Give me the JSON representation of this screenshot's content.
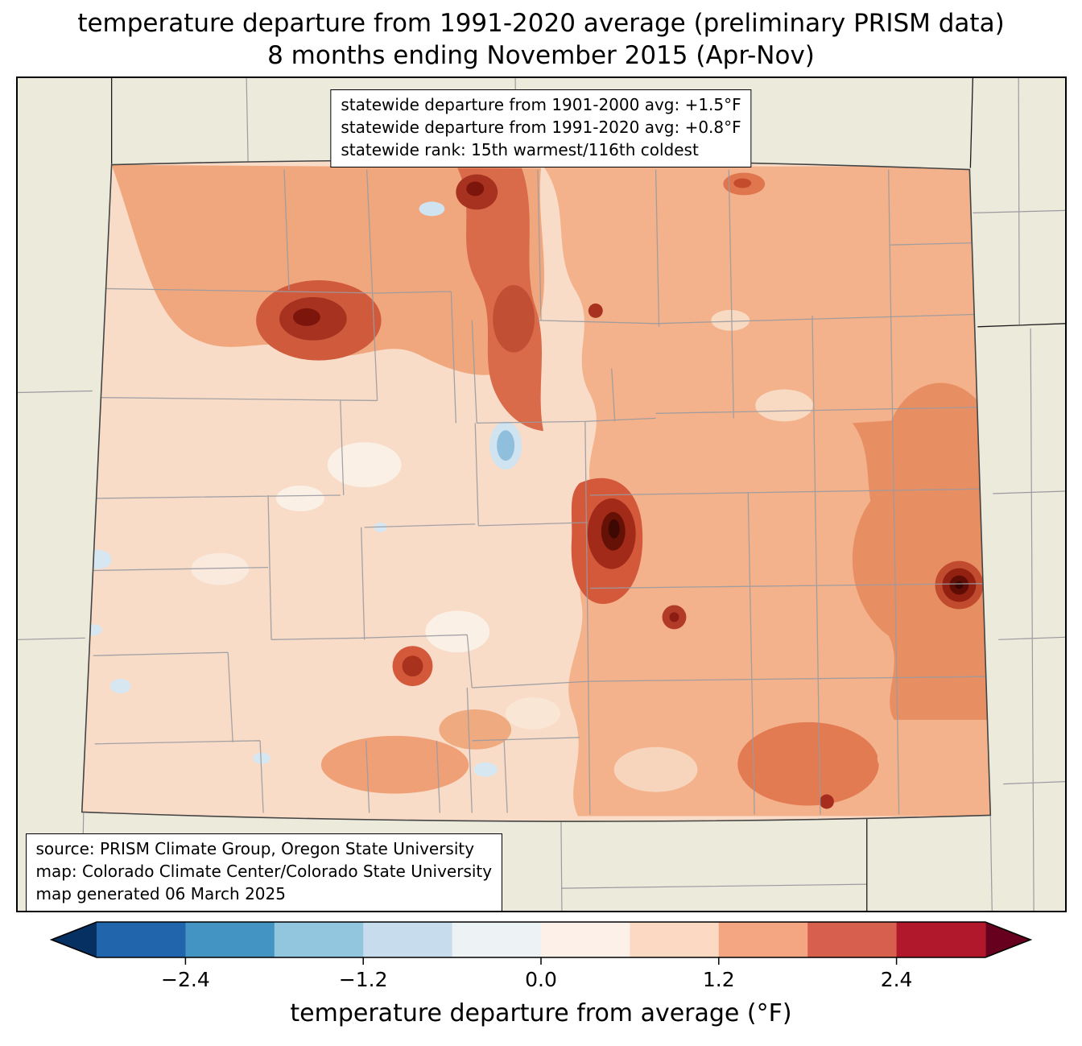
{
  "title": {
    "line1": "temperature departure from 1991-2020 average (preliminary PRISM data)",
    "line2": "8 months ending November 2015 (Apr-Nov)"
  },
  "stats_box": {
    "line1": "statewide departure from 1901-2000 avg: +1.5°F",
    "line2": "statewide departure from 1991-2020 avg: +0.8°F",
    "line3": "statewide rank: 15th warmest/116th coldest"
  },
  "source_box": {
    "line1": "source: PRISM Climate Group, Oregon State University",
    "line2": "map: Colorado Climate Center/Colorado State University",
    "line3": "map generated 06 March 2025"
  },
  "colorbar": {
    "label": "temperature departure from average (°F)",
    "range": [
      -3.0,
      3.0
    ],
    "band_step": 0.6,
    "ticks": [
      {
        "value": -2.4,
        "label": "−2.4"
      },
      {
        "value": -1.2,
        "label": "−1.2"
      },
      {
        "value": 0.0,
        "label": "0.0"
      },
      {
        "value": 1.2,
        "label": "1.2"
      },
      {
        "value": 2.4,
        "label": "2.4"
      }
    ],
    "band_colors": [
      "#2166ac",
      "#4393c3",
      "#92c5de",
      "#c7dcec",
      "#edf2f5",
      "#fdf0e9",
      "#fbd9c2",
      "#f4a582",
      "#d6604d",
      "#b2182b"
    ],
    "under_color": "#053061",
    "over_color": "#67001f"
  },
  "map": {
    "region": "Colorado",
    "background_color": "#eceadb",
    "state_base_color": "#f8dcc8",
    "county_line_color": "#9a9aa0",
    "warm_colors": [
      "#f1a77e",
      "#e88e63",
      "#d3593a",
      "#a83220",
      "#661106"
    ],
    "cool_colors": [
      "#cfe3f0",
      "#8fbfdc"
    ]
  }
}
